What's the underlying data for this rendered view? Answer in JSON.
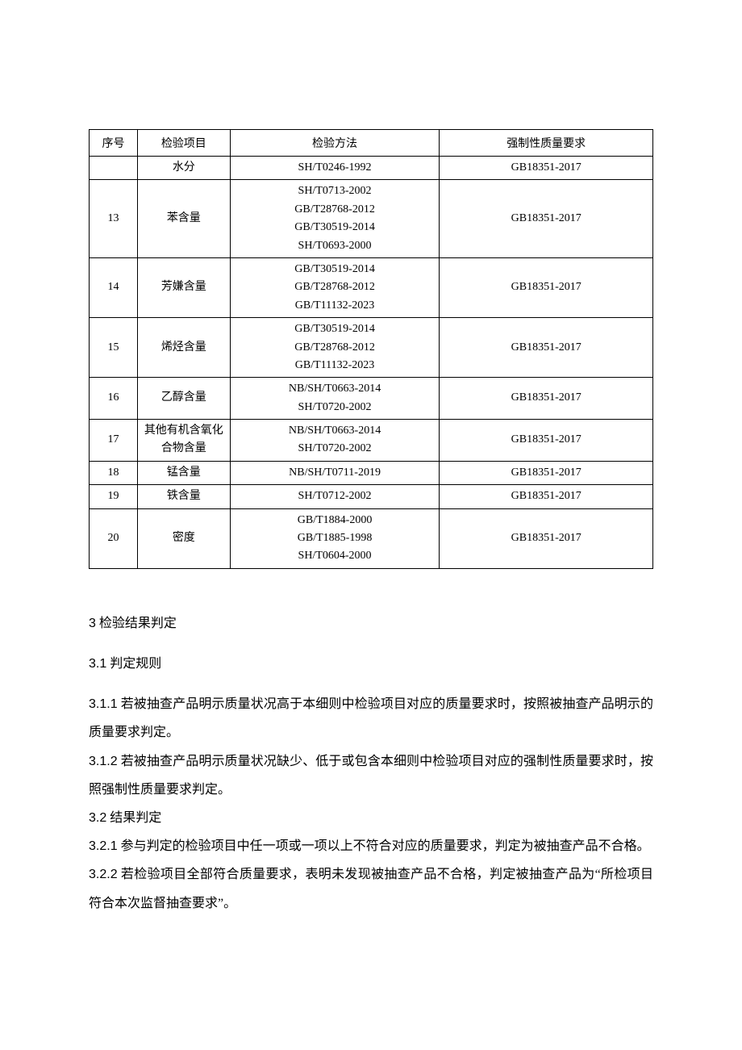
{
  "table": {
    "headers": {
      "seq": "序号",
      "item": "检验项目",
      "method": "检验方法",
      "req": "强制性质量要求"
    },
    "rows": [
      {
        "seq": "",
        "item": "水分",
        "methods": [
          "SH/T0246-1992"
        ],
        "req": "GB18351-2017"
      },
      {
        "seq": "13",
        "item": "苯含量",
        "methods": [
          "SH/T0713-2002",
          "GB/T28768-2012",
          "GB/T30519-2014",
          "SH/T0693-2000"
        ],
        "req": "GB18351-2017"
      },
      {
        "seq": "14",
        "item": "芳嫌含量",
        "methods": [
          "GB/T30519-2014",
          "GB/T28768-2012",
          "GB/T11132-2023"
        ],
        "req": "GB18351-2017"
      },
      {
        "seq": "15",
        "item": "烯烃含量",
        "methods": [
          "GB/T30519-2014",
          "GB/T28768-2012",
          "GB/T11132-2023"
        ],
        "req": "GB18351-2017"
      },
      {
        "seq": "16",
        "item": "乙醇含量",
        "methods": [
          "NB/SH/T0663-2014",
          "SH/T0720-2002"
        ],
        "req": "GB18351-2017"
      },
      {
        "seq": "17",
        "item": "其他有机含氧化合物含量",
        "methods": [
          "NB/SH/T0663-2014",
          "SH/T0720-2002"
        ],
        "req": "GB18351-2017"
      },
      {
        "seq": "18",
        "item": "锰含量",
        "methods": [
          "NB/SH/T0711-2019"
        ],
        "req": "GB18351-2017"
      },
      {
        "seq": "19",
        "item": "铁含量",
        "methods": [
          "SH/T0712-2002"
        ],
        "req": "GB18351-2017"
      },
      {
        "seq": "20",
        "item": "密度",
        "methods": [
          "GB/T1884-2000",
          "GB/T1885-1998",
          "SH/T0604-2000"
        ],
        "req": "GB18351-2017"
      }
    ]
  },
  "sections": {
    "s3": {
      "num": "3",
      "title": " 检验结果判定"
    },
    "s31": {
      "num": "3.1",
      "title": " 判定规则"
    },
    "s311": {
      "num": "3.1.1",
      "text": " 若被抽查产品明示质量状况高于本细则中检验项目对应的质量要求时，按照被抽查产品明示的质量要求判定。"
    },
    "s312": {
      "num": "3.1.2",
      "text": " 若被抽查产品明示质量状况缺少、低于或包含本细则中检验项目对应的强制性质量要求时，按照强制性质量要求判定。"
    },
    "s32": {
      "num": "3.2",
      "title": " 结果判定"
    },
    "s321": {
      "num": "3.2.1",
      "text": " 参与判定的检验项目中任一项或一项以上不符合对应的质量要求，判定为被抽查产品不合格。"
    },
    "s322": {
      "num": "3.2.2",
      "text": " 若检验项目全部符合质量要求，表明未发现被抽查产品不合格，判定被抽查产品为“所检项目符合本次监督抽查要求”。"
    }
  }
}
